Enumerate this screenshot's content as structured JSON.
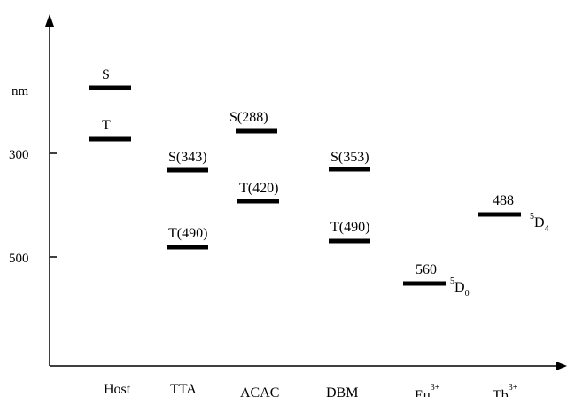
{
  "axis": {
    "y_unit": "nm",
    "y_ticks": [
      "300",
      "500"
    ]
  },
  "columns": [
    "Host",
    "TTA",
    "ACAC",
    "DBM",
    "Eu",
    "Tb"
  ],
  "column_superscripts": {
    "Eu": "3+",
    "Tb": "3+"
  },
  "levels": [
    {
      "column": "Host",
      "label": "S"
    },
    {
      "column": "Host",
      "label": "T"
    },
    {
      "column": "TTA",
      "label": "S(343)"
    },
    {
      "column": "TTA",
      "label": "T(490)"
    },
    {
      "column": "ACAC",
      "label": "S(288)"
    },
    {
      "column": "ACAC",
      "label": "T(420)"
    },
    {
      "column": "DBM",
      "label": "S(353)"
    },
    {
      "column": "DBM",
      "label": "T(490)"
    },
    {
      "column": "Eu",
      "label": "560",
      "state_sup": "5",
      "state_main": "D",
      "state_sub": "0"
    },
    {
      "column": "Tb",
      "label": "488",
      "state_sup": "5",
      "state_main": "D",
      "state_sub": "4"
    }
  ],
  "colors": {
    "ink": "#000000",
    "background": "#ffffff"
  }
}
